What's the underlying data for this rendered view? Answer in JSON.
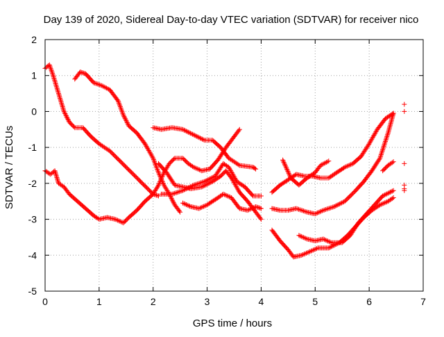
{
  "chart_data": {
    "type": "scatter",
    "title": "Day 139 of 2020, Sidereal Day-to-day VTEC variation (SDTVAR) for receiver nico",
    "xlabel": "GPS time / hours",
    "ylabel": "SDTVAR / TECUs",
    "xlim": [
      0,
      7
    ],
    "ylim": [
      -5,
      2
    ],
    "x_ticks": [
      "0",
      "1",
      "2",
      "3",
      "4",
      "5",
      "6",
      "7"
    ],
    "y_ticks": [
      "-5",
      "-4",
      "-3",
      "-2",
      "-1",
      "0",
      "1",
      "2"
    ],
    "grid": true,
    "legend": "none",
    "marker": "+",
    "color": "#ff0000",
    "series": [
      {
        "polyline": [
          [
            0.0,
            1.2
          ],
          [
            0.08,
            1.3
          ],
          [
            0.15,
            1.0
          ],
          [
            0.25,
            0.5
          ],
          [
            0.35,
            0.0
          ],
          [
            0.45,
            -0.3
          ],
          [
            0.55,
            -0.45
          ],
          [
            0.7,
            -0.45
          ],
          [
            0.85,
            -0.7
          ],
          [
            1.0,
            -0.9
          ],
          [
            1.2,
            -1.1
          ],
          [
            1.4,
            -1.4
          ],
          [
            1.6,
            -1.7
          ],
          [
            1.8,
            -2.0
          ],
          [
            2.0,
            -2.3
          ],
          [
            2.1,
            -2.35
          ]
        ]
      },
      {
        "polyline": [
          [
            0.0,
            -1.65
          ],
          [
            0.1,
            -1.75
          ],
          [
            0.18,
            -1.65
          ],
          [
            0.25,
            -2.0
          ],
          [
            0.35,
            -2.1
          ],
          [
            0.45,
            -2.3
          ],
          [
            0.6,
            -2.5
          ],
          [
            0.75,
            -2.7
          ],
          [
            0.9,
            -2.9
          ],
          [
            1.0,
            -3.0
          ],
          [
            1.15,
            -2.95
          ],
          [
            1.3,
            -3.0
          ],
          [
            1.45,
            -3.1
          ],
          [
            1.55,
            -2.95
          ],
          [
            1.7,
            -2.75
          ],
          [
            1.85,
            -2.5
          ],
          [
            2.0,
            -2.3
          ],
          [
            2.1,
            -2.05
          ],
          [
            2.2,
            -1.7
          ],
          [
            2.3,
            -1.45
          ],
          [
            2.4,
            -1.3
          ],
          [
            2.55,
            -1.3
          ],
          [
            2.65,
            -1.45
          ],
          [
            2.75,
            -1.55
          ],
          [
            2.9,
            -1.65
          ],
          [
            3.05,
            -1.6
          ],
          [
            3.2,
            -1.35
          ],
          [
            3.35,
            -1.0
          ],
          [
            3.5,
            -0.7
          ],
          [
            3.6,
            -0.5
          ]
        ]
      },
      {
        "polyline": [
          [
            0.55,
            0.9
          ],
          [
            0.65,
            1.1
          ],
          [
            0.75,
            1.05
          ],
          [
            0.9,
            0.8
          ],
          [
            1.05,
            0.72
          ],
          [
            1.2,
            0.6
          ],
          [
            1.35,
            0.3
          ],
          [
            1.45,
            -0.1
          ],
          [
            1.55,
            -0.4
          ],
          [
            1.7,
            -0.6
          ],
          [
            1.85,
            -0.9
          ],
          [
            2.0,
            -1.3
          ],
          [
            2.1,
            -1.7
          ],
          [
            2.2,
            -2.05
          ],
          [
            2.3,
            -2.3
          ],
          [
            2.4,
            -2.6
          ],
          [
            2.5,
            -2.8
          ]
        ]
      },
      {
        "polyline": [
          [
            2.0,
            -0.45
          ],
          [
            2.15,
            -0.5
          ],
          [
            2.35,
            -0.45
          ],
          [
            2.55,
            -0.5
          ],
          [
            2.75,
            -0.65
          ],
          [
            2.95,
            -0.8
          ],
          [
            3.1,
            -0.8
          ],
          [
            3.25,
            -1.0
          ],
          [
            3.4,
            -1.3
          ],
          [
            3.6,
            -1.5
          ],
          [
            3.85,
            -1.55
          ],
          [
            3.9,
            -1.6
          ]
        ]
      },
      {
        "polyline": [
          [
            2.1,
            -1.45
          ],
          [
            2.25,
            -1.7
          ],
          [
            2.4,
            -2.05
          ],
          [
            2.55,
            -2.1
          ],
          [
            2.7,
            -2.15
          ],
          [
            2.9,
            -2.1
          ],
          [
            3.1,
            -1.95
          ],
          [
            3.25,
            -1.8
          ],
          [
            3.35,
            -1.65
          ],
          [
            3.45,
            -1.85
          ],
          [
            3.6,
            -2.25
          ],
          [
            3.75,
            -2.5
          ],
          [
            3.9,
            -2.8
          ],
          [
            4.0,
            -3.0
          ]
        ]
      },
      {
        "polyline": [
          [
            2.55,
            -2.55
          ],
          [
            2.7,
            -2.65
          ],
          [
            2.85,
            -2.7
          ],
          [
            3.0,
            -2.6
          ],
          [
            3.15,
            -2.45
          ],
          [
            3.3,
            -2.3
          ],
          [
            3.45,
            -2.4
          ],
          [
            3.6,
            -2.7
          ],
          [
            3.75,
            -2.75
          ],
          [
            3.9,
            -2.65
          ],
          [
            4.0,
            -2.7
          ]
        ]
      },
      {
        "polyline": [
          [
            2.15,
            -2.3
          ],
          [
            2.35,
            -2.3
          ],
          [
            2.55,
            -2.2
          ],
          [
            2.75,
            -2.05
          ],
          [
            2.95,
            -1.95
          ],
          [
            3.15,
            -1.8
          ],
          [
            3.3,
            -1.45
          ],
          [
            3.4,
            -1.55
          ],
          [
            3.55,
            -1.95
          ],
          [
            3.7,
            -2.1
          ],
          [
            3.85,
            -2.35
          ],
          [
            4.0,
            -2.35
          ]
        ]
      },
      {
        "polyline": [
          [
            4.2,
            -2.25
          ],
          [
            4.35,
            -2.05
          ],
          [
            4.5,
            -1.9
          ],
          [
            4.65,
            -1.75
          ],
          [
            4.8,
            -1.8
          ],
          [
            4.95,
            -1.8
          ],
          [
            5.1,
            -1.85
          ],
          [
            5.25,
            -1.85
          ],
          [
            5.4,
            -1.7
          ],
          [
            5.55,
            -1.55
          ],
          [
            5.7,
            -1.45
          ],
          [
            5.85,
            -1.25
          ],
          [
            6.0,
            -0.9
          ],
          [
            6.15,
            -0.5
          ],
          [
            6.3,
            -0.2
          ],
          [
            6.45,
            -0.05
          ]
        ]
      },
      {
        "polyline": [
          [
            4.4,
            -1.35
          ],
          [
            4.55,
            -1.85
          ],
          [
            4.7,
            -2.05
          ],
          [
            4.85,
            -1.85
          ],
          [
            5.0,
            -1.7
          ],
          [
            5.1,
            -1.5
          ],
          [
            5.25,
            -1.38
          ]
        ]
      },
      {
        "polyline": [
          [
            4.2,
            -2.7
          ],
          [
            4.35,
            -2.75
          ],
          [
            4.5,
            -2.75
          ],
          [
            4.65,
            -2.7
          ],
          [
            4.85,
            -2.8
          ],
          [
            5.0,
            -2.85
          ],
          [
            5.15,
            -2.75
          ],
          [
            5.35,
            -2.65
          ],
          [
            5.55,
            -2.5
          ],
          [
            5.75,
            -2.2
          ],
          [
            5.9,
            -1.95
          ],
          [
            6.05,
            -1.65
          ],
          [
            6.2,
            -1.3
          ],
          [
            6.35,
            -0.6
          ],
          [
            6.45,
            -0.05
          ]
        ]
      },
      {
        "polyline": [
          [
            4.2,
            -3.3
          ],
          [
            4.35,
            -3.6
          ],
          [
            4.5,
            -3.85
          ],
          [
            4.6,
            -4.05
          ],
          [
            4.75,
            -4.0
          ],
          [
            4.9,
            -3.9
          ],
          [
            5.05,
            -3.8
          ],
          [
            5.25,
            -3.8
          ],
          [
            5.45,
            -3.65
          ],
          [
            5.6,
            -3.45
          ],
          [
            5.75,
            -3.2
          ],
          [
            5.9,
            -2.95
          ],
          [
            6.05,
            -2.75
          ],
          [
            6.2,
            -2.6
          ],
          [
            6.35,
            -2.5
          ],
          [
            6.45,
            -2.4
          ]
        ]
      },
      {
        "polyline": [
          [
            4.7,
            -3.45
          ],
          [
            4.85,
            -3.55
          ],
          [
            5.0,
            -3.6
          ],
          [
            5.15,
            -3.55
          ],
          [
            5.3,
            -3.65
          ],
          [
            5.5,
            -3.65
          ],
          [
            5.65,
            -3.45
          ],
          [
            5.8,
            -3.1
          ],
          [
            5.95,
            -2.85
          ],
          [
            6.1,
            -2.6
          ],
          [
            6.25,
            -2.35
          ],
          [
            6.45,
            -2.2
          ]
        ]
      },
      {
        "polyline": [
          [
            6.25,
            -1.65
          ],
          [
            6.35,
            -1.5
          ],
          [
            6.45,
            -1.4
          ]
        ]
      },
      {
        "points": [
          [
            6.65,
            0.2
          ],
          [
            6.65,
            0.0
          ],
          [
            6.65,
            -1.45
          ],
          [
            6.65,
            -2.05
          ],
          [
            6.65,
            -2.15
          ],
          [
            6.65,
            -2.2
          ]
        ]
      }
    ]
  }
}
